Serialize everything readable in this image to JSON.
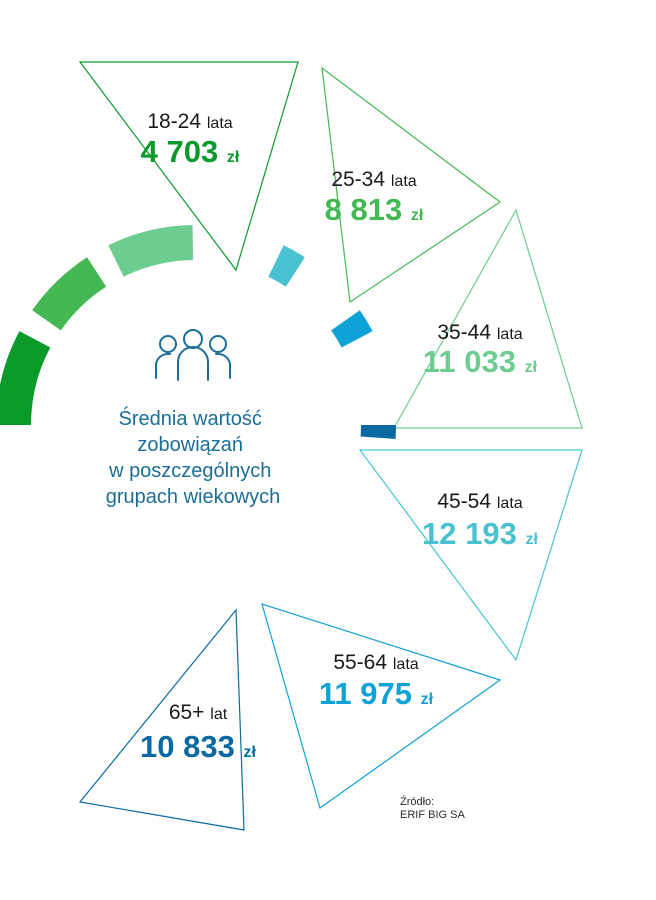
{
  "chart_data": {
    "type": "radial-bar",
    "title": "Średnia wartość zobowiązań w poszczególnych grupach wiekowych",
    "title_lines": [
      "Średnia wartość",
      "zobowiązań",
      "w poszczególnych",
      "grupach wiekowych"
    ],
    "categories": [
      {
        "age": "18-24",
        "age_unit": "lata",
        "value": 4703,
        "value_text": "4 703",
        "currency": "zł",
        "color": "#0a9a2a"
      },
      {
        "age": "25-34",
        "age_unit": "lata",
        "value": 8813,
        "value_text": "8 813",
        "currency": "zł",
        "color": "#44b852"
      },
      {
        "age": "35-44",
        "age_unit": "lata",
        "value": 11033,
        "value_text": "11 033",
        "currency": "zł",
        "color": "#6dcc8f"
      },
      {
        "age": "45-54",
        "age_unit": "lata",
        "value": 12193,
        "value_text": "12 193",
        "currency": "zł",
        "color": "#48c2d0"
      },
      {
        "age": "55-64",
        "age_unit": "lata",
        "value": 11975,
        "value_text": "11 975",
        "currency": "zł",
        "color": "#0fa2d6"
      },
      {
        "age": "65+",
        "age_unit": "lat",
        "value": 10833,
        "value_text": "10 833",
        "currency": "zł",
        "color": "#0a69a0"
      }
    ],
    "icon": "people-group-icon"
  },
  "source": {
    "label": "Źródło:",
    "name": "ERIF BIG SA"
  },
  "colors": {
    "title": "#1b6e96",
    "icon": "#1b6e96"
  }
}
